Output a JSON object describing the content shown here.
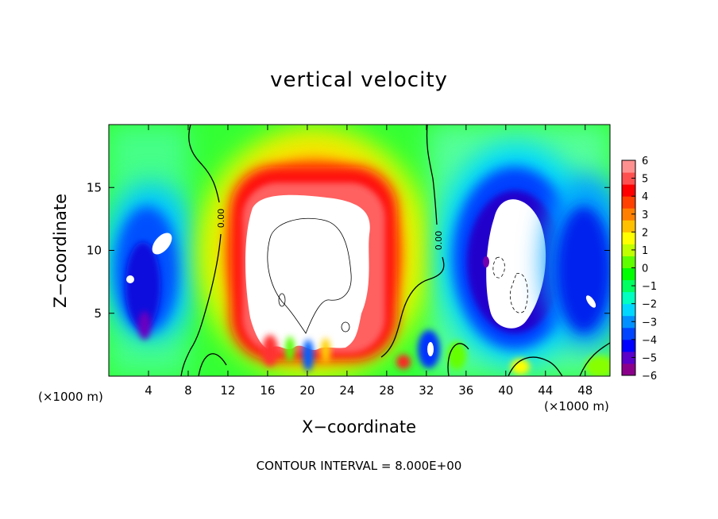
{
  "chart_data": {
    "type": "heatmap",
    "title": "vertical velocity",
    "xlabel": "X−coordinate",
    "ylabel": "Z−coordinate",
    "x_unit_label": "(×1000 m)",
    "xlim": [
      0,
      50.5
    ],
    "ylim": [
      0,
      20
    ],
    "x_ticks": [
      4,
      8,
      12,
      16,
      20,
      24,
      28,
      32,
      36,
      40,
      44,
      48
    ],
    "y_ticks": [
      5,
      10,
      15
    ],
    "colorbar_ticks": [
      "6",
      "5",
      "4",
      "3",
      "2",
      "1",
      "0",
      "−1",
      "−2",
      "−3",
      "−4",
      "−5",
      "−6"
    ],
    "colorbar_range": [
      -6,
      6
    ],
    "contour_interval_text": "CONTOUR INTERVAL = 8.000E+00",
    "zero_contour_label": "0.00",
    "features": [
      {
        "name": "main updraft",
        "x_range": [
          14,
          29
        ],
        "z_range": [
          1,
          17
        ],
        "value": "> 6"
      },
      {
        "name": "left downdraft",
        "x_range": [
          1,
          8
        ],
        "z_range": [
          2,
          14
        ],
        "value": "-4 to -6"
      },
      {
        "name": "right downdraft",
        "x_range": [
          35,
          46
        ],
        "z_range": [
          3,
          16
        ],
        "value": "< -6"
      },
      {
        "name": "far right downdraft",
        "x_range": [
          45,
          50.5
        ],
        "z_range": [
          4,
          16
        ],
        "value": "-4 to -5"
      }
    ]
  },
  "colors": {
    "colorbar": [
      "#8b008b",
      "#5a00c8",
      "#0000ff",
      "#0044ff",
      "#0090ff",
      "#00d8ff",
      "#00ffc0",
      "#00ff60",
      "#00ff00",
      "#60ff00",
      "#c0ff00",
      "#ffff00",
      "#ffc000",
      "#ff8000",
      "#ff4000",
      "#ff0000",
      "#ff5050",
      "#ff9090"
    ],
    "frame": "#000000"
  }
}
